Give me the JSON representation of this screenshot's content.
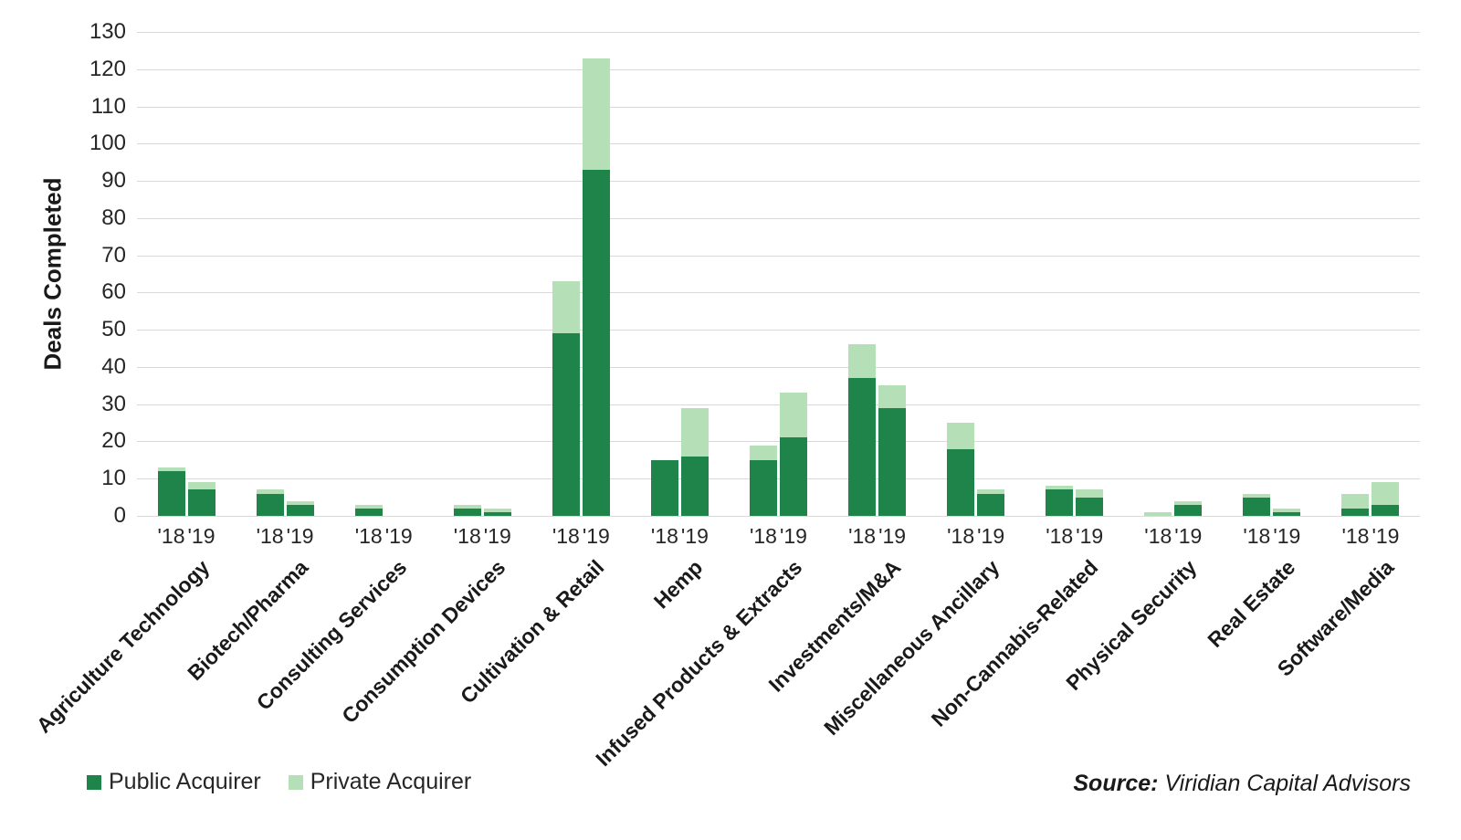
{
  "chart_data": {
    "type": "bar",
    "stacked": true,
    "title": "",
    "ylabel": "Deals Completed",
    "xlabel": "",
    "ylim": [
      0,
      130
    ],
    "yticks": [
      0,
      10,
      20,
      30,
      40,
      50,
      60,
      70,
      80,
      90,
      100,
      110,
      120,
      130
    ],
    "grid": "horizontal",
    "legend_position": "bottom-left",
    "year_labels": [
      "'18",
      "'19"
    ],
    "series": [
      {
        "name": "Public Acquirer",
        "color": "#1e8449"
      },
      {
        "name": "Private Acquirer",
        "color": "#b5dfb7"
      }
    ],
    "categories": [
      {
        "label": "Agriculture Technology",
        "bars": [
          {
            "year": "'18",
            "public": 12,
            "private": 1
          },
          {
            "year": "'19",
            "public": 7,
            "private": 2
          }
        ]
      },
      {
        "label": "Biotech/Pharma",
        "bars": [
          {
            "year": "'18",
            "public": 6,
            "private": 1
          },
          {
            "year": "'19",
            "public": 3,
            "private": 1
          }
        ]
      },
      {
        "label": "Consulting Services",
        "bars": [
          {
            "year": "'18",
            "public": 2,
            "private": 1
          },
          {
            "year": "'19",
            "public": 0,
            "private": 0
          }
        ]
      },
      {
        "label": "Consumption Devices",
        "bars": [
          {
            "year": "'18",
            "public": 2,
            "private": 1
          },
          {
            "year": "'19",
            "public": 1,
            "private": 1
          }
        ]
      },
      {
        "label": "Cultivation & Retail",
        "bars": [
          {
            "year": "'18",
            "public": 49,
            "private": 14
          },
          {
            "year": "'19",
            "public": 93,
            "private": 30
          }
        ]
      },
      {
        "label": "Hemp",
        "bars": [
          {
            "year": "'18",
            "public": 15,
            "private": 0
          },
          {
            "year": "'19",
            "public": 16,
            "private": 13
          }
        ]
      },
      {
        "label": "Infused Products & Extracts",
        "bars": [
          {
            "year": "'18",
            "public": 15,
            "private": 4
          },
          {
            "year": "'19",
            "public": 21,
            "private": 12
          }
        ]
      },
      {
        "label": "Investments/M&A",
        "bars": [
          {
            "year": "'18",
            "public": 37,
            "private": 9
          },
          {
            "year": "'19",
            "public": 29,
            "private": 6
          }
        ]
      },
      {
        "label": "Miscellaneous Ancillary",
        "bars": [
          {
            "year": "'18",
            "public": 18,
            "private": 7
          },
          {
            "year": "'19",
            "public": 6,
            "private": 1
          }
        ]
      },
      {
        "label": "Non-Cannabis-Related",
        "bars": [
          {
            "year": "'18",
            "public": 7,
            "private": 1
          },
          {
            "year": "'19",
            "public": 5,
            "private": 2
          }
        ]
      },
      {
        "label": "Physical Security",
        "bars": [
          {
            "year": "'18",
            "public": 0,
            "private": 1
          },
          {
            "year": "'19",
            "public": 3,
            "private": 1
          }
        ]
      },
      {
        "label": "Real Estate",
        "bars": [
          {
            "year": "'18",
            "public": 5,
            "private": 1
          },
          {
            "year": "'19",
            "public": 1,
            "private": 1
          }
        ]
      },
      {
        "label": "Software/Media",
        "bars": [
          {
            "year": "'18",
            "public": 2,
            "private": 4
          },
          {
            "year": "'19",
            "public": 3,
            "private": 6
          }
        ]
      }
    ]
  },
  "source": {
    "label": "Source:",
    "text": "Viridian Capital Advisors"
  },
  "colors": {
    "grid": "#d9d9d9",
    "text": "#262626"
  }
}
